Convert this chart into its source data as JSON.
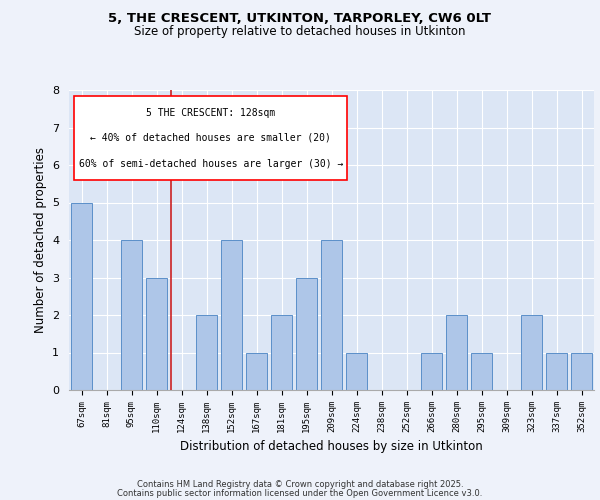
{
  "title1": "5, THE CRESCENT, UTKINTON, TARPORLEY, CW6 0LT",
  "title2": "Size of property relative to detached houses in Utkinton",
  "xlabel": "Distribution of detached houses by size in Utkinton",
  "ylabel": "Number of detached properties",
  "categories": [
    "67sqm",
    "81sqm",
    "95sqm",
    "110sqm",
    "124sqm",
    "138sqm",
    "152sqm",
    "167sqm",
    "181sqm",
    "195sqm",
    "209sqm",
    "224sqm",
    "238sqm",
    "252sqm",
    "266sqm",
    "280sqm",
    "295sqm",
    "309sqm",
    "323sqm",
    "337sqm",
    "352sqm"
  ],
  "values": [
    5,
    0,
    4,
    3,
    0,
    2,
    4,
    1,
    2,
    3,
    4,
    1,
    0,
    0,
    1,
    2,
    1,
    0,
    2,
    1,
    1
  ],
  "bar_color": "#aec6e8",
  "bar_edge_color": "#5b8fc9",
  "highlight_index": 4,
  "highlight_color": "#cc2222",
  "annotation_title": "5 THE CRESCENT: 128sqm",
  "annotation_line1": "← 40% of detached houses are smaller (20)",
  "annotation_line2": "60% of semi-detached houses are larger (30) →",
  "footer1": "Contains HM Land Registry data © Crown copyright and database right 2025.",
  "footer2": "Contains public sector information licensed under the Open Government Licence v3.0.",
  "ylim": [
    0,
    8
  ],
  "yticks": [
    0,
    1,
    2,
    3,
    4,
    5,
    6,
    7,
    8
  ],
  "fig_bg_color": "#eef2fa",
  "plot_bg_color": "#dce6f5"
}
